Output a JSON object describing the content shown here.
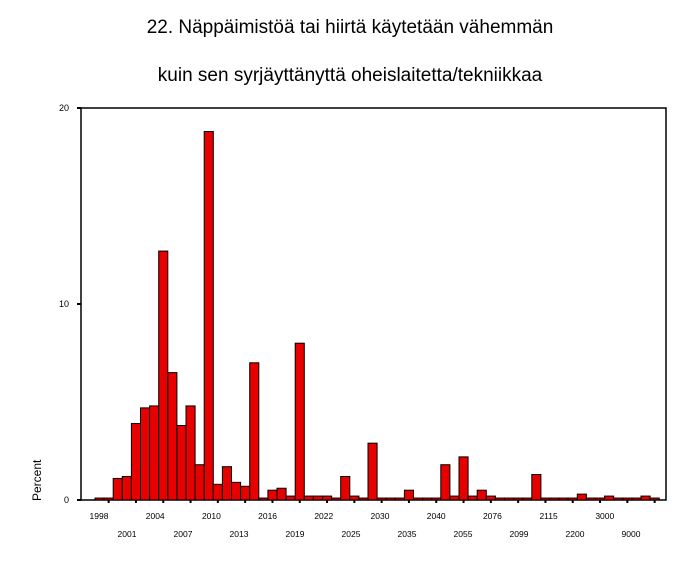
{
  "chart_data": {
    "type": "bar",
    "title_lines": [
      "22. Näppäimistöä tai hiirtä käytetään vähemmän",
      "kuin sen syrjäyttänyttä oheislaitetta/tekniikkaa"
    ],
    "ylabel": "Percent",
    "xlabel": "",
    "ylim": [
      0,
      20
    ],
    "yticks": [
      "0",
      "10",
      "20"
    ],
    "tick_labels_row1": [
      "1998",
      "2004",
      "2010",
      "2016",
      "2022",
      "2030",
      "2040",
      "2076",
      "2115",
      "3000"
    ],
    "tick_labels_row2": [
      "2001",
      "2007",
      "2013",
      "2019",
      "2025",
      "2035",
      "2055",
      "2099",
      "2200",
      "9000"
    ],
    "values": [
      0.1,
      0.1,
      1.1,
      1.2,
      3.9,
      4.7,
      4.8,
      12.7,
      6.5,
      3.8,
      4.8,
      1.8,
      18.8,
      0.8,
      1.7,
      0.9,
      0.7,
      7.0,
      0.1,
      0.5,
      0.6,
      0.2,
      8.0,
      0.2,
      0.2,
      0.2,
      0.1,
      1.2,
      0.2,
      0.1,
      2.9,
      0.1,
      0.1,
      0.1,
      0.5,
      0.1,
      0.1,
      0.1,
      1.8,
      0.2,
      2.2,
      0.2,
      0.5,
      0.2,
      0.1,
      0.1,
      0.1,
      0.1,
      1.3,
      0.1,
      0.1,
      0.1,
      0.1,
      0.3,
      0.1,
      0.1,
      0.2,
      0.1,
      0.1,
      0.1,
      0.2,
      0.1
    ],
    "bar_color": "#e60000",
    "grid": false,
    "legend": "none"
  }
}
